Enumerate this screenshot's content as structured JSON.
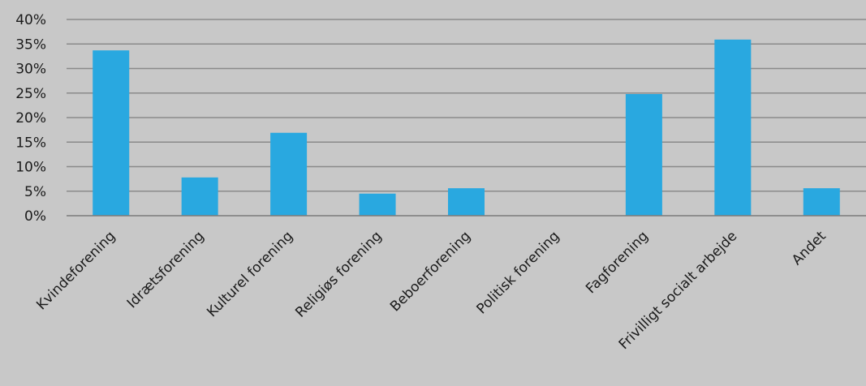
{
  "chart_data": {
    "type": "bar",
    "title": "",
    "xlabel": "",
    "ylabel": "",
    "categories": [
      "Kvindeforening",
      "Idrætsforening",
      "Kulturel forening",
      "Religiøs forening",
      "Beboerforening",
      "Politisk forening",
      "Fagforening",
      "Frivilligt socialt arbejde",
      "Andet"
    ],
    "values": [
      33.7,
      7.8,
      16.9,
      4.5,
      5.6,
      0,
      24.8,
      35.9,
      5.6
    ],
    "ylim": [
      0,
      40
    ],
    "yticks": [
      0,
      5,
      10,
      15,
      20,
      25,
      30,
      35,
      40
    ],
    "ytick_labels": [
      "0%",
      "5%",
      "10%",
      "15%",
      "20%",
      "25%",
      "30%",
      "35%",
      "40%"
    ],
    "grid": true,
    "legend": "none",
    "colors": {
      "bar": "#29a8e0",
      "background": "#c8c8c8",
      "grid": "#8a8a8a"
    }
  }
}
